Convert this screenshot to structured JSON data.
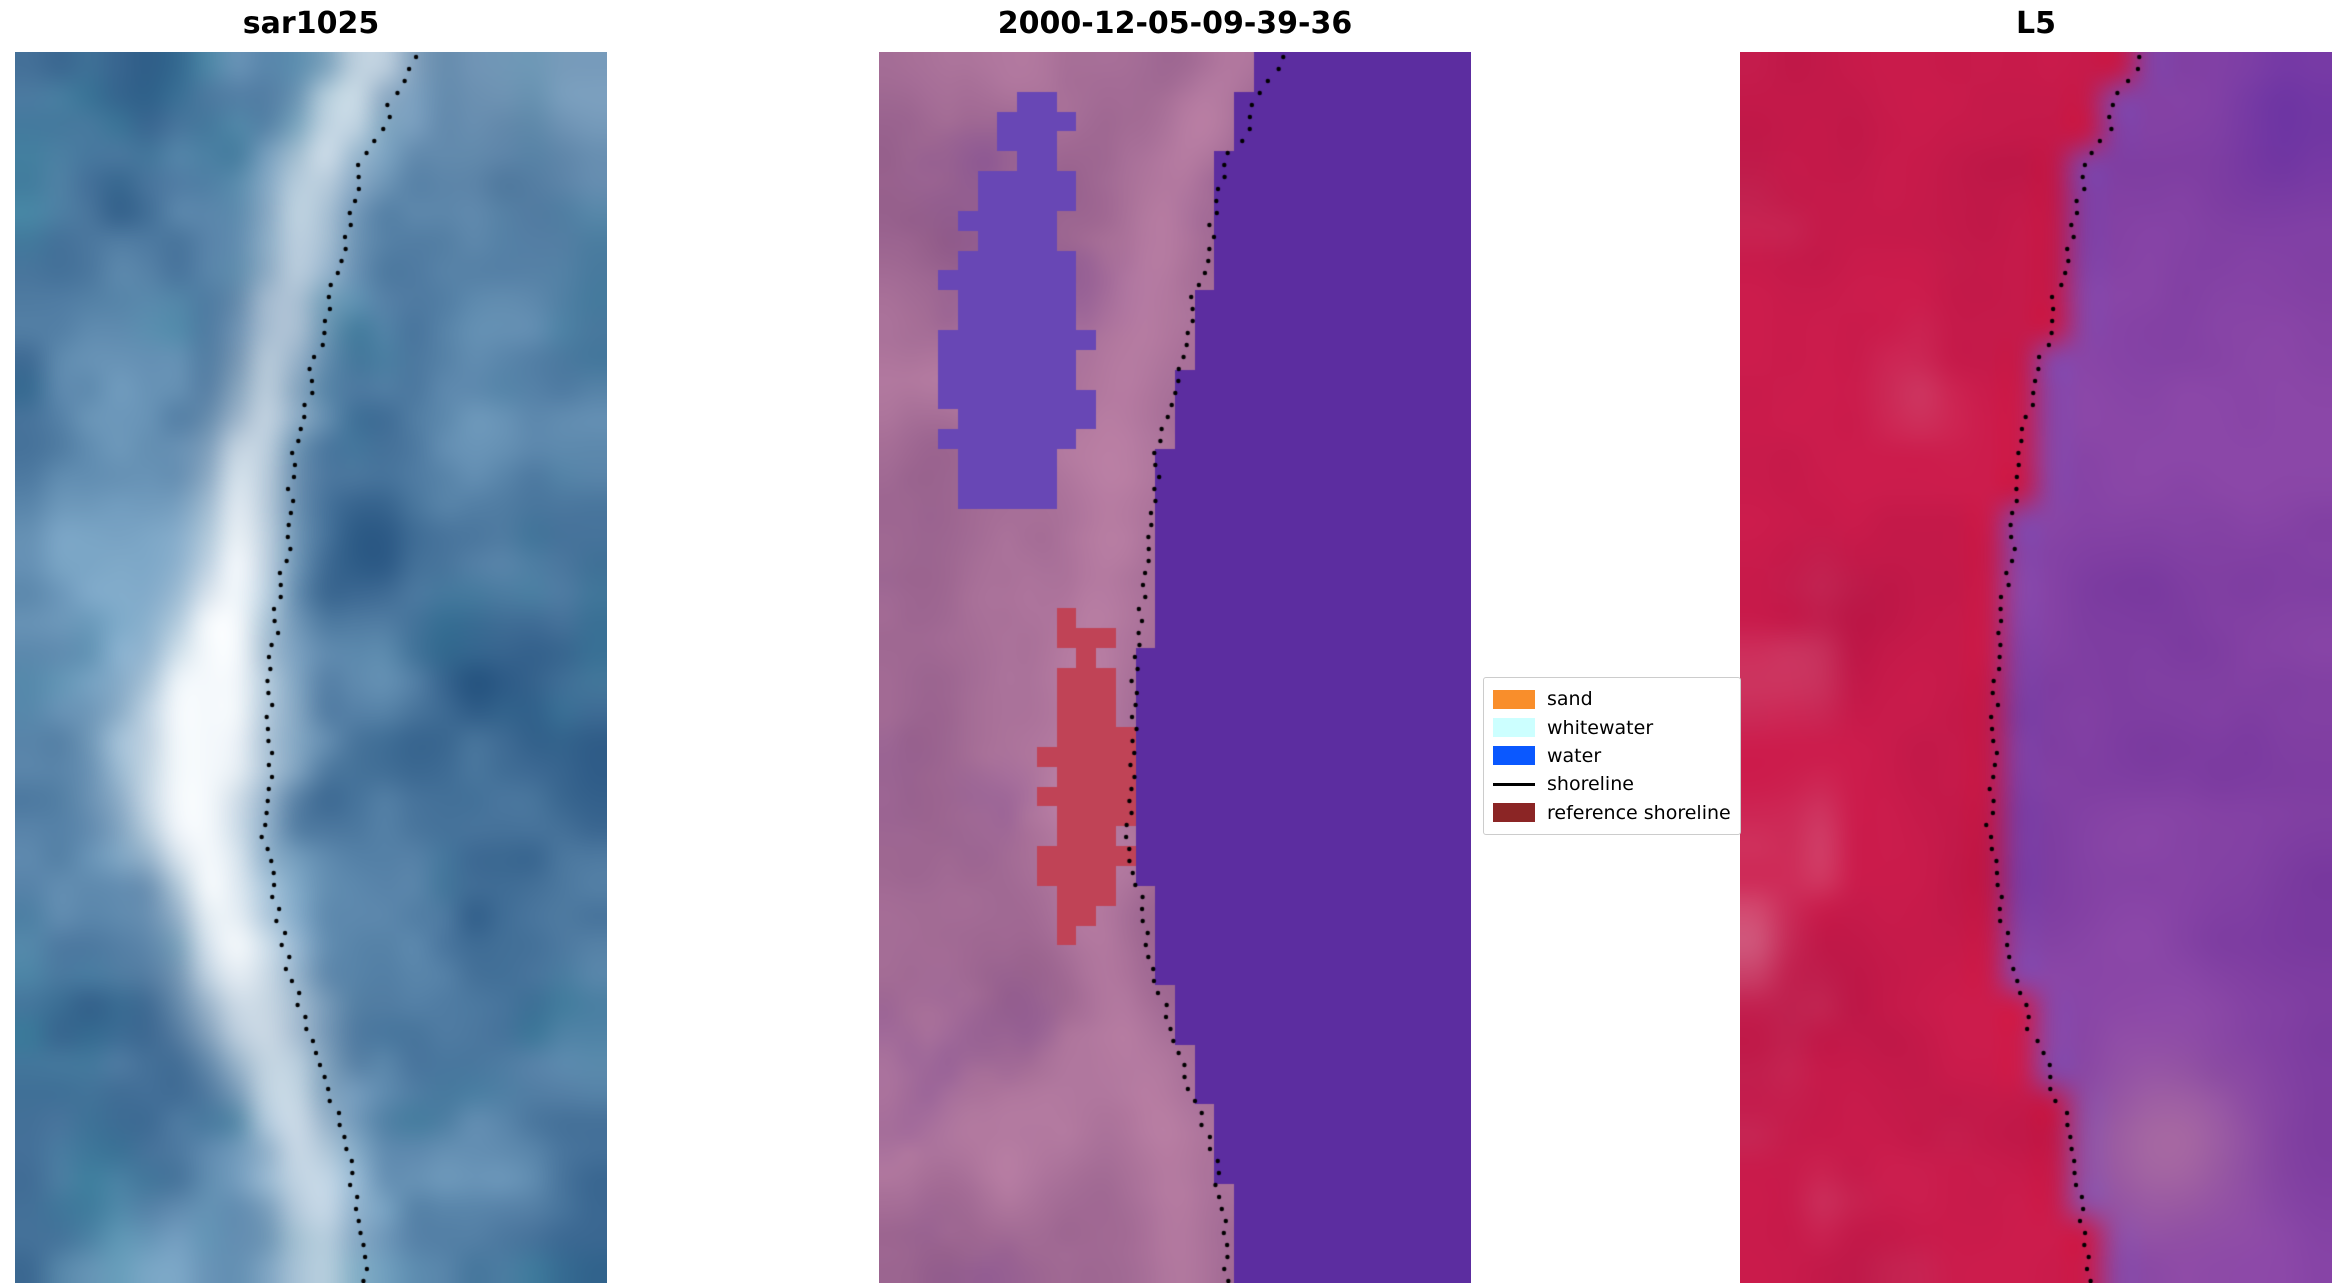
{
  "chart_data": {
    "type": "heatmap",
    "subtype": "satellite-image-panels",
    "panels": [
      {
        "title": "sar1025"
      },
      {
        "title": "2000-12-05-09-39-36"
      },
      {
        "title": "L5"
      }
    ],
    "legend": [
      {
        "label": "sand",
        "color": "#f98e2b"
      },
      {
        "label": "whitewater",
        "color": "#ccffff"
      },
      {
        "label": "water",
        "color": "#0a58ff"
      },
      {
        "label": "shoreline",
        "color": "#000000"
      },
      {
        "label": "reference shoreline",
        "color": "#8b2525"
      }
    ],
    "shoreline_points_normalized": [
      [
        0.68,
        0.0
      ],
      [
        0.63,
        0.05
      ],
      [
        0.58,
        0.1
      ],
      [
        0.56,
        0.15
      ],
      [
        0.53,
        0.21
      ],
      [
        0.5,
        0.27
      ],
      [
        0.47,
        0.33
      ],
      [
        0.46,
        0.4
      ],
      [
        0.44,
        0.46
      ],
      [
        0.43,
        0.52
      ],
      [
        0.43,
        0.58
      ],
      [
        0.42,
        0.63
      ],
      [
        0.44,
        0.69
      ],
      [
        0.46,
        0.74
      ],
      [
        0.49,
        0.79
      ],
      [
        0.52,
        0.83
      ],
      [
        0.55,
        0.87
      ],
      [
        0.57,
        0.91
      ],
      [
        0.58,
        0.95
      ],
      [
        0.59,
        1.0
      ]
    ]
  },
  "figure": {
    "background": "#ffffff",
    "shoreline": {
      "dot_color": "#000000",
      "points": [
        [
          0.68,
          0.0
        ],
        [
          0.63,
          0.05
        ],
        [
          0.58,
          0.1
        ],
        [
          0.56,
          0.15
        ],
        [
          0.53,
          0.21
        ],
        [
          0.5,
          0.27
        ],
        [
          0.47,
          0.33
        ],
        [
          0.46,
          0.4
        ],
        [
          0.44,
          0.46
        ],
        [
          0.43,
          0.52
        ],
        [
          0.43,
          0.58
        ],
        [
          0.42,
          0.63
        ],
        [
          0.44,
          0.69
        ],
        [
          0.46,
          0.74
        ],
        [
          0.49,
          0.79
        ],
        [
          0.52,
          0.83
        ],
        [
          0.55,
          0.87
        ],
        [
          0.57,
          0.91
        ],
        [
          0.58,
          0.95
        ],
        [
          0.59,
          1.0
        ]
      ]
    },
    "panels": [
      {
        "title": "sar1025",
        "type": "sar",
        "grid": [
          20,
          42
        ],
        "seed": 3,
        "palette": {
          "deep": "#1c4a78",
          "light": "#84aecd",
          "teal": "#2f8a9e",
          "bright": "#f5f9fc"
        }
      },
      {
        "title": "2000-12-05-09-39-36",
        "type": "classified",
        "grid": [
          30,
          62
        ],
        "seed": 11,
        "palette": {
          "mauve_dark": "#8a5584",
          "mauve_light": "#bc82a6",
          "purple_tint": "#7c4a92",
          "pink_band": "#c98cae",
          "water": "#5c2da0",
          "land_blob": "#6847b5",
          "red_patch": "#c04356"
        }
      },
      {
        "title": "L5",
        "type": "l5",
        "grid": [
          18,
          38
        ],
        "seed": 23,
        "palette": {
          "red": "#cc1c4c",
          "red_dark": "#a81040",
          "pink_light": "#dc93ac",
          "purple": "#8b47a8",
          "purple_dark": "#6c2f98",
          "pink_blob": "#bd81a2",
          "deep_violet": "#5b2aa2"
        }
      }
    ],
    "legend": {
      "items": [
        {
          "label": "sand",
          "color": "#f98e2b",
          "type": "patch"
        },
        {
          "label": "whitewater",
          "color": "#ccffff",
          "type": "patch"
        },
        {
          "label": "water",
          "color": "#0a58ff",
          "type": "patch"
        },
        {
          "label": "shoreline",
          "color": "#000000",
          "type": "line"
        },
        {
          "label": "reference shoreline",
          "color": "#8b2525",
          "type": "patch"
        }
      ]
    }
  }
}
